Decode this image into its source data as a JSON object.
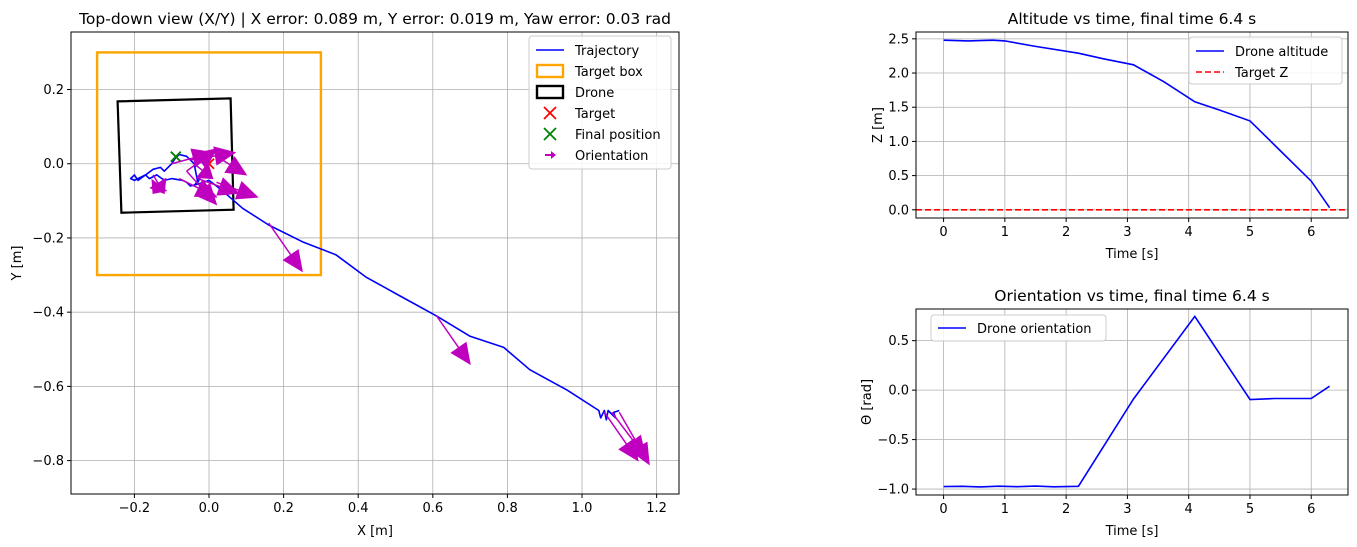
{
  "chart_data": [
    {
      "id": "topdown",
      "type": "line",
      "title": "Top-down view (X/Y) | X error: 0.089 m, Y error: 0.019 m, Yaw error: 0.03 rad",
      "xlabel": "X [m]",
      "ylabel": "Y [m]",
      "xlim": [
        -0.37,
        1.26
      ],
      "ylim": [
        -0.89,
        0.355
      ],
      "xticks": [
        -0.2,
        0.0,
        0.2,
        0.4,
        0.6,
        0.8,
        1.0,
        1.2
      ],
      "xtick_labels": [
        "−0.2",
        "0.0",
        "0.2",
        "0.4",
        "0.6",
        "0.8",
        "1.0",
        "1.2"
      ],
      "yticks": [
        0.2,
        0.0,
        -0.2,
        -0.4,
        -0.6,
        -0.8
      ],
      "ytick_labels": [
        "0.2",
        "0.0",
        "−0.2",
        "−0.4",
        "−0.6",
        "−0.8"
      ],
      "grid": true,
      "legend_position": "top-right",
      "legend": [
        {
          "label": "Trajectory",
          "kind": "line",
          "color": "#0000ff"
        },
        {
          "label": "Target box",
          "kind": "rect",
          "color": "#ffa500"
        },
        {
          "label": "Drone",
          "kind": "rect",
          "color": "#000000"
        },
        {
          "label": "Target",
          "kind": "x",
          "color": "#ff0000"
        },
        {
          "label": "Final position",
          "kind": "x",
          "color": "#008000"
        },
        {
          "label": "Orientation",
          "kind": "arrow",
          "color": "#bf00bf"
        }
      ],
      "trajectory": {
        "x": [
          1.1,
          1.085,
          1.09,
          1.07,
          1.065,
          1.06,
          1.05,
          1.045,
          0.96,
          0.86,
          0.79,
          0.7,
          0.61,
          0.51,
          0.42,
          0.34,
          0.25,
          0.16,
          0.09,
          0.05,
          0.02,
          0.0,
          -0.03,
          -0.05,
          -0.06,
          -0.07,
          -0.1,
          -0.12,
          -0.14,
          -0.16,
          -0.17,
          -0.19,
          -0.2,
          -0.21,
          -0.2,
          -0.17,
          -0.15,
          -0.13,
          -0.12,
          -0.1,
          -0.09,
          -0.08,
          -0.06,
          -0.04,
          -0.03,
          -0.02,
          -0.04
        ],
        "y": [
          -0.665,
          -0.67,
          -0.685,
          -0.665,
          -0.69,
          -0.665,
          -0.685,
          -0.665,
          -0.61,
          -0.555,
          -0.495,
          -0.465,
          -0.41,
          -0.355,
          -0.305,
          -0.245,
          -0.21,
          -0.165,
          -0.12,
          -0.085,
          -0.06,
          -0.045,
          -0.055,
          -0.06,
          -0.05,
          -0.045,
          -0.04,
          -0.045,
          -0.03,
          -0.04,
          -0.03,
          -0.045,
          -0.03,
          -0.04,
          -0.045,
          -0.03,
          -0.015,
          -0.01,
          -0.02,
          0.0,
          0.015,
          0.025,
          0.02,
          0.0,
          -0.05,
          -0.03,
          -0.06
        ]
      },
      "target_box": {
        "x": [
          -0.3,
          0.3
        ],
        "y": [
          -0.3,
          0.3
        ]
      },
      "drone_outline": {
        "x": [
          -0.245,
          0.058,
          0.066,
          -0.235
        ],
        "y": [
          0.168,
          0.176,
          -0.124,
          -0.132
        ]
      },
      "target": {
        "x": 0.0,
        "y": 0.0
      },
      "final_position": {
        "x": -0.089,
        "y": 0.019
      },
      "orientation_arrows": [
        {
          "x": 1.1,
          "y": -0.67,
          "dx": 0.08,
          "dy": -0.14
        },
        {
          "x": 1.08,
          "y": -0.67,
          "dx": 0.09,
          "dy": -0.12
        },
        {
          "x": 1.06,
          "y": -0.67,
          "dx": 0.09,
          "dy": -0.13
        },
        {
          "x": 0.61,
          "y": -0.41,
          "dx": 0.09,
          "dy": -0.13
        },
        {
          "x": 0.16,
          "y": -0.16,
          "dx": 0.09,
          "dy": -0.13
        },
        {
          "x": 0.02,
          "y": -0.05,
          "dx": 0.11,
          "dy": -0.04
        },
        {
          "x": -0.03,
          "y": -0.04,
          "dx": 0.11,
          "dy": -0.04
        },
        {
          "x": -0.08,
          "y": -0.04,
          "dx": 0.1,
          "dy": -0.05
        },
        {
          "x": -0.1,
          "y": 0.0,
          "dx": 0.11,
          "dy": 0.03
        },
        {
          "x": -0.12,
          "y": -0.04,
          "dx": -0.03,
          "dy": -0.04
        },
        {
          "x": -0.15,
          "y": -0.03,
          "dx": 0.03,
          "dy": -0.05
        },
        {
          "x": -0.06,
          "y": -0.02,
          "dx": 0.08,
          "dy": -0.09
        },
        {
          "x": -0.04,
          "y": 0.0,
          "dx": 0.05,
          "dy": -0.04
        },
        {
          "x": -0.06,
          "y": -0.02,
          "dx": 0.08,
          "dy": 0.06
        },
        {
          "x": -0.05,
          "y": 0.01,
          "dx": 0.12,
          "dy": 0.02
        },
        {
          "x": 0.02,
          "y": 0.02,
          "dx": 0.08,
          "dy": -0.05
        }
      ]
    },
    {
      "id": "altitude",
      "type": "line",
      "title": "Altitude vs time, final time 6.4 s",
      "xlabel": "Time [s]",
      "ylabel": "Z [m]",
      "xlim": [
        -0.45,
        6.6
      ],
      "ylim": [
        -0.12,
        2.6
      ],
      "xticks": [
        0,
        1,
        2,
        3,
        4,
        5,
        6
      ],
      "xtick_labels": [
        "0",
        "1",
        "2",
        "3",
        "4",
        "5",
        "6"
      ],
      "yticks": [
        0.0,
        0.5,
        1.0,
        1.5,
        2.0,
        2.5
      ],
      "ytick_labels": [
        "0.0",
        "0.5",
        "1.0",
        "1.5",
        "2.0",
        "2.5"
      ],
      "grid": true,
      "legend_position": "top-right",
      "legend": [
        {
          "label": "Drone altitude",
          "kind": "line",
          "color": "#0000ff"
        },
        {
          "label": "Target Z",
          "kind": "dashed",
          "color": "#ff0000"
        }
      ],
      "series": [
        {
          "name": "Drone altitude",
          "x": [
            0,
            0.4,
            0.8,
            1.0,
            1.5,
            2.2,
            2.6,
            3.1,
            3.6,
            4.1,
            4.5,
            5.0,
            5.5,
            6.0,
            6.3
          ],
          "y": [
            2.48,
            2.47,
            2.48,
            2.47,
            2.39,
            2.29,
            2.21,
            2.12,
            1.87,
            1.58,
            1.46,
            1.3,
            0.86,
            0.42,
            0.03
          ]
        }
      ],
      "target_z": 0.0
    },
    {
      "id": "orientation",
      "type": "line",
      "title": "Orientation vs time, final time 6.4 s",
      "xlabel": "Time [s]",
      "ylabel": "Θ [rad]",
      "xlim": [
        -0.45,
        6.6
      ],
      "ylim": [
        -1.06,
        0.82
      ],
      "xticks": [
        0,
        1,
        2,
        3,
        4,
        5,
        6
      ],
      "xtick_labels": [
        "0",
        "1",
        "2",
        "3",
        "4",
        "5",
        "6"
      ],
      "yticks": [
        0.5,
        0.0,
        -0.5,
        -1.0
      ],
      "ytick_labels": [
        "0.5",
        "0.0",
        "−0.5",
        "−1.0"
      ],
      "grid": true,
      "legend_position": "top-left",
      "legend": [
        {
          "label": "Drone orientation",
          "kind": "line",
          "color": "#0000ff"
        }
      ],
      "series": [
        {
          "name": "Drone orientation",
          "x": [
            0,
            0.3,
            0.6,
            0.9,
            1.2,
            1.5,
            1.8,
            2.0,
            2.2,
            3.1,
            4.1,
            5.0,
            5.4,
            6.0,
            6.3
          ],
          "y": [
            -0.975,
            -0.972,
            -0.978,
            -0.971,
            -0.976,
            -0.97,
            -0.977,
            -0.975,
            -0.972,
            -0.09,
            0.745,
            -0.095,
            -0.085,
            -0.085,
            0.04
          ]
        }
      ]
    }
  ]
}
